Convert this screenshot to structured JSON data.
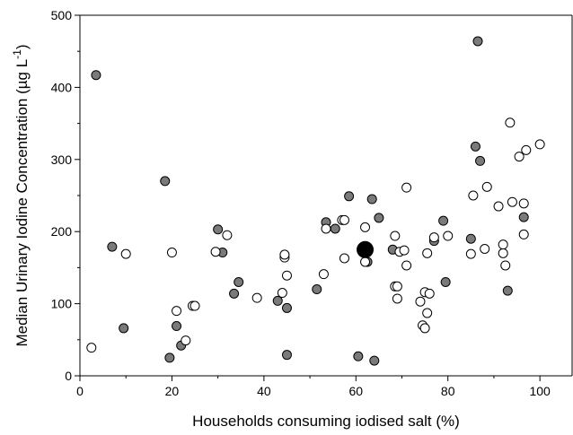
{
  "chart_data": {
    "type": "scatter",
    "title": "",
    "xlabel": "Households consuming iodised salt (%)",
    "ylabel_main": "Median Urinary Iodine Concentration (µg L",
    "ylabel_sup": "-1",
    "ylabel_close": ")",
    "xlim": [
      0,
      107
    ],
    "ylim": [
      0,
      500
    ],
    "xticks": [
      0,
      20,
      40,
      60,
      80,
      100
    ],
    "yticks": [
      0,
      100,
      200,
      300,
      400,
      500
    ],
    "grid": false,
    "legend": "none",
    "series": [
      {
        "style": "filled-grey",
        "color": "#7a7a7a",
        "points": [
          [
            3.5,
            417
          ],
          [
            7,
            179
          ],
          [
            9.5,
            66
          ],
          [
            18.5,
            270
          ],
          [
            19.5,
            25
          ],
          [
            21,
            69
          ],
          [
            22,
            42
          ],
          [
            30,
            203
          ],
          [
            31,
            171
          ],
          [
            33.5,
            114
          ],
          [
            34.5,
            130
          ],
          [
            43,
            104
          ],
          [
            45,
            29
          ],
          [
            45,
            94
          ],
          [
            51.5,
            120
          ],
          [
            53.5,
            213
          ],
          [
            55.5,
            204
          ],
          [
            58.5,
            249
          ],
          [
            60.5,
            27
          ],
          [
            62.5,
            158
          ],
          [
            63.5,
            245
          ],
          [
            64,
            21
          ],
          [
            65,
            219
          ],
          [
            68,
            175
          ],
          [
            77,
            187
          ],
          [
            79,
            215
          ],
          [
            79.5,
            130
          ],
          [
            85,
            190
          ],
          [
            86,
            318
          ],
          [
            86.5,
            464
          ],
          [
            87,
            298
          ],
          [
            93,
            118
          ],
          [
            96.5,
            220
          ]
        ]
      },
      {
        "style": "open",
        "color": "#ffffff",
        "points": [
          [
            2.5,
            39
          ],
          [
            10,
            169
          ],
          [
            20,
            171
          ],
          [
            21,
            90
          ],
          [
            23,
            49
          ],
          [
            24.5,
            97
          ],
          [
            25,
            97
          ],
          [
            29.5,
            172
          ],
          [
            32,
            195
          ],
          [
            38.5,
            108
          ],
          [
            44,
            115
          ],
          [
            44.5,
            164
          ],
          [
            44.5,
            168
          ],
          [
            45,
            139
          ],
          [
            53,
            141
          ],
          [
            53.5,
            204
          ],
          [
            57,
            216
          ],
          [
            57.5,
            216
          ],
          [
            57.5,
            163
          ],
          [
            62,
            206
          ],
          [
            62,
            158
          ],
          [
            68.5,
            194
          ],
          [
            68.5,
            124
          ],
          [
            69,
            124
          ],
          [
            69,
            107
          ],
          [
            69.5,
            172
          ],
          [
            70.5,
            174
          ],
          [
            71,
            153
          ],
          [
            71,
            261
          ],
          [
            74,
            103
          ],
          [
            74.5,
            70
          ],
          [
            75,
            66
          ],
          [
            75,
            116
          ],
          [
            75.5,
            170
          ],
          [
            75.5,
            87
          ],
          [
            76,
            114
          ],
          [
            77,
            192
          ],
          [
            80,
            194
          ],
          [
            85,
            169
          ],
          [
            85.5,
            250
          ],
          [
            88,
            176
          ],
          [
            88.5,
            262
          ],
          [
            91,
            235
          ],
          [
            92,
            182
          ],
          [
            92,
            170
          ],
          [
            92.5,
            153
          ],
          [
            93.5,
            351
          ],
          [
            94,
            241
          ],
          [
            95.5,
            304
          ],
          [
            96.5,
            239
          ],
          [
            96.5,
            196
          ],
          [
            97,
            313
          ],
          [
            100,
            321
          ]
        ]
      },
      {
        "style": "filled-black-large",
        "color": "#000000",
        "points": [
          [
            62,
            175
          ]
        ]
      }
    ]
  }
}
